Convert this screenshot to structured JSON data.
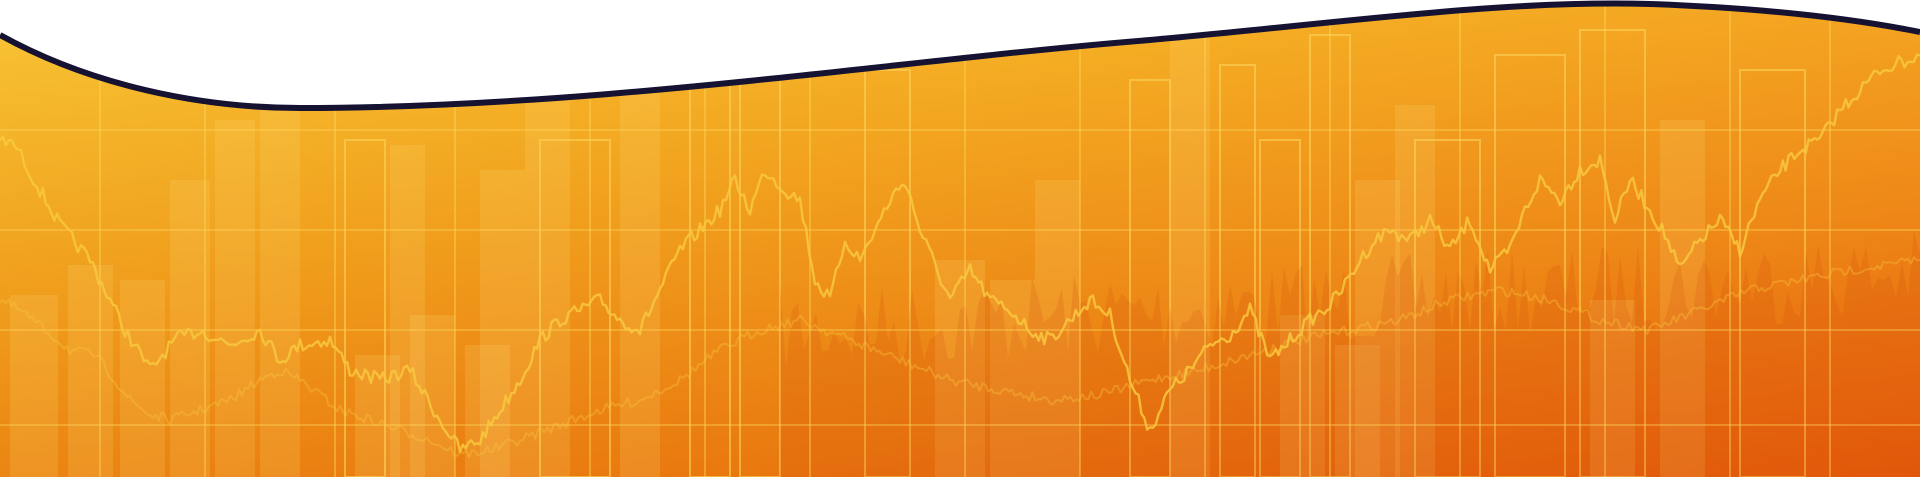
{
  "banner": {
    "description_colors": {
      "gradient_light": "#f5be2a",
      "gradient_mid": "#f09a12",
      "gradient_dark": "#e9610a",
      "grid_line": "#fbd45a",
      "price_line": "#f8c63d",
      "outline_stroke": "#151232",
      "background": "#ffffff"
    },
    "icon": "stock-chart-wave-banner"
  }
}
